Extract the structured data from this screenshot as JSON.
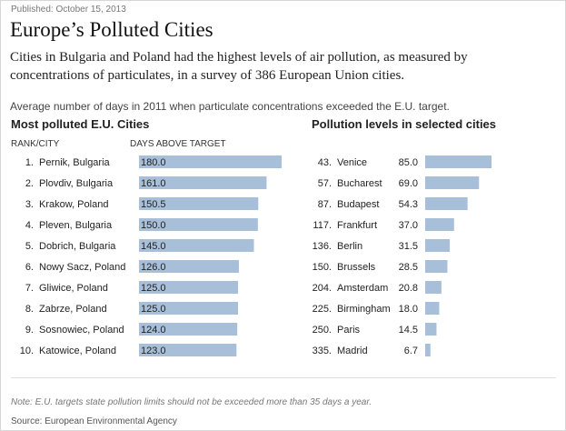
{
  "published": "Published: October 15, 2013",
  "title": "Europe’s Polluted Cities",
  "subtitle": "Cities in Bulgaria and Poland had the highest levels of air pollution, as measured by concentrations of particulates, in a survey of 386 European Union cities.",
  "chart_note": "Average number of days in 2011 when particulate concentrations exceeded the E.U. target.",
  "colors": {
    "bar": "#a7bfd8",
    "text": "#222222"
  },
  "chart_data": [
    {
      "type": "bar",
      "orientation": "horizontal",
      "title": "Most polluted E.U. Cities",
      "rank_header": "RANK/CITY",
      "value_header": "DAYS ABOVE TARGET",
      "categories": [
        "Pernik, Bulgaria",
        "Plovdiv, Bulgaria",
        "Krakow, Poland",
        "Pleven, Bulgaria",
        "Dobrich, Bulgaria",
        "Nowy Sacz, Poland",
        "Gliwice, Poland",
        "Zabrze, Poland",
        "Sosnowiec, Poland",
        "Katowice, Poland"
      ],
      "ranks": [
        "1.",
        "2.",
        "3.",
        "4.",
        "5.",
        "6.",
        "7.",
        "8.",
        "9.",
        "10."
      ],
      "values": [
        180.0,
        161.0,
        150.5,
        150.0,
        145.0,
        126.0,
        125.0,
        125.0,
        124.0,
        123.0
      ],
      "labels": [
        "180.0",
        "161.0",
        "150.5",
        "150.0",
        "145.0",
        "126.0",
        "125.0",
        "125.0",
        "124.0",
        "123.0"
      ],
      "xlim": [
        0,
        180
      ]
    },
    {
      "type": "bar",
      "orientation": "horizontal",
      "title": "Pollution levels in selected cities",
      "categories": [
        "Venice",
        "Bucharest",
        "Budapest",
        "Frankfurt",
        "Berlin",
        "Brussels",
        "Amsterdam",
        "Birmingham",
        "Paris",
        "Madrid"
      ],
      "ranks": [
        "43.",
        "57.",
        "87.",
        "117.",
        "136.",
        "150.",
        "204.",
        "225.",
        "250.",
        "335."
      ],
      "values": [
        85.0,
        69.0,
        54.3,
        37.0,
        31.5,
        28.5,
        20.8,
        18.0,
        14.5,
        6.7
      ],
      "labels": [
        "85.0",
        "69.0",
        "54.3",
        "37.0",
        "31.5",
        "28.5",
        "20.8",
        "18.0",
        "14.5",
        "6.7"
      ],
      "xlim": [
        0,
        85
      ]
    }
  ],
  "foot_note": "Note: E.U. targets state pollution limits should not be exceeded more than 35 days a year.",
  "source": "Source: European Environmental Agency"
}
